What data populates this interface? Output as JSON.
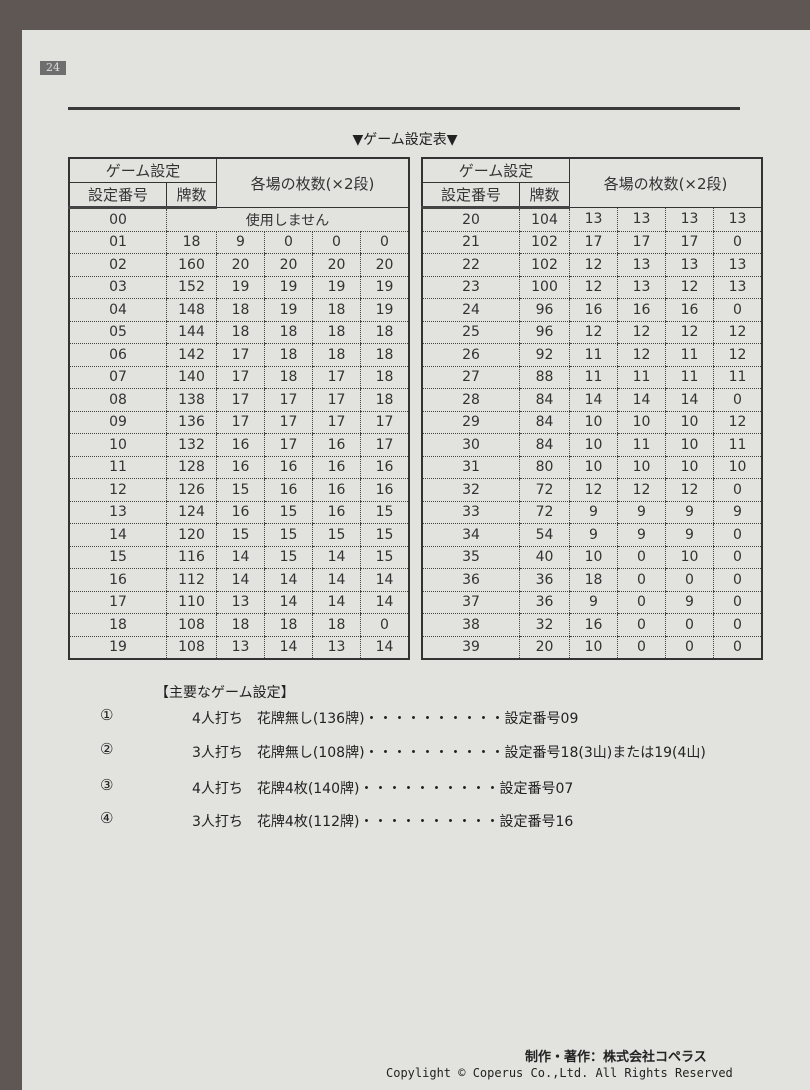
{
  "page_number": "24",
  "title": "▼ゲーム設定表▼",
  "table_headers": {
    "game_setting": "ゲーム設定",
    "setting_no": "設定番号",
    "tiles": "牌数",
    "per_field": "各場の枚数(×2段)"
  },
  "unused_label": "使用しません",
  "left_rows": [
    [
      "00"
    ],
    [
      "01",
      "18",
      "9",
      "0",
      "0",
      "0"
    ],
    [
      "02",
      "160",
      "20",
      "20",
      "20",
      "20"
    ],
    [
      "03",
      "152",
      "19",
      "19",
      "19",
      "19"
    ],
    [
      "04",
      "148",
      "18",
      "19",
      "18",
      "19"
    ],
    [
      "05",
      "144",
      "18",
      "18",
      "18",
      "18"
    ],
    [
      "06",
      "142",
      "17",
      "18",
      "18",
      "18"
    ],
    [
      "07",
      "140",
      "17",
      "18",
      "17",
      "18"
    ],
    [
      "08",
      "138",
      "17",
      "17",
      "17",
      "18"
    ],
    [
      "09",
      "136",
      "17",
      "17",
      "17",
      "17"
    ],
    [
      "10",
      "132",
      "16",
      "17",
      "16",
      "17"
    ],
    [
      "11",
      "128",
      "16",
      "16",
      "16",
      "16"
    ],
    [
      "12",
      "126",
      "15",
      "16",
      "16",
      "16"
    ],
    [
      "13",
      "124",
      "16",
      "15",
      "16",
      "15"
    ],
    [
      "14",
      "120",
      "15",
      "15",
      "15",
      "15"
    ],
    [
      "15",
      "116",
      "14",
      "15",
      "14",
      "15"
    ],
    [
      "16",
      "112",
      "14",
      "14",
      "14",
      "14"
    ],
    [
      "17",
      "110",
      "13",
      "14",
      "14",
      "14"
    ],
    [
      "18",
      "108",
      "18",
      "18",
      "18",
      "0"
    ],
    [
      "19",
      "108",
      "13",
      "14",
      "13",
      "14"
    ]
  ],
  "right_rows": [
    [
      "20",
      "104",
      "13",
      "13",
      "13",
      "13"
    ],
    [
      "21",
      "102",
      "17",
      "17",
      "17",
      "0"
    ],
    [
      "22",
      "102",
      "12",
      "13",
      "13",
      "13"
    ],
    [
      "23",
      "100",
      "12",
      "13",
      "12",
      "13"
    ],
    [
      "24",
      "96",
      "16",
      "16",
      "16",
      "0"
    ],
    [
      "25",
      "96",
      "12",
      "12",
      "12",
      "12"
    ],
    [
      "26",
      "92",
      "11",
      "12",
      "11",
      "12"
    ],
    [
      "27",
      "88",
      "11",
      "11",
      "11",
      "11"
    ],
    [
      "28",
      "84",
      "14",
      "14",
      "14",
      "0"
    ],
    [
      "29",
      "84",
      "10",
      "10",
      "10",
      "12"
    ],
    [
      "30",
      "84",
      "10",
      "11",
      "10",
      "11"
    ],
    [
      "31",
      "80",
      "10",
      "10",
      "10",
      "10"
    ],
    [
      "32",
      "72",
      "12",
      "12",
      "12",
      "0"
    ],
    [
      "33",
      "72",
      "9",
      "9",
      "9",
      "9"
    ],
    [
      "34",
      "54",
      "9",
      "9",
      "9",
      "0"
    ],
    [
      "35",
      "40",
      "10",
      "0",
      "10",
      "0"
    ],
    [
      "36",
      "36",
      "18",
      "0",
      "0",
      "0"
    ],
    [
      "37",
      "36",
      "9",
      "0",
      "9",
      "0"
    ],
    [
      "38",
      "32",
      "16",
      "0",
      "0",
      "0"
    ],
    [
      "39",
      "20",
      "10",
      "0",
      "0",
      "0"
    ]
  ],
  "main_settings": {
    "heading": "【主要なゲーム設定】",
    "items": [
      {
        "mark": "①",
        "text": "4人打ち　花牌無し(136牌)・・・・・・・・・・設定番号09"
      },
      {
        "mark": "②",
        "text": "3人打ち　花牌無し(108牌)・・・・・・・・・・設定番号18(3山)または19(4山)"
      },
      {
        "mark": "③",
        "text": "4人打ち　花牌4枚(140牌)・・・・・・・・・・設定番号07"
      },
      {
        "mark": "④",
        "text": "3人打ち　花牌4枚(112牌)・・・・・・・・・・設定番号16"
      }
    ]
  },
  "footer": {
    "credit": "制作・著作：株式会社コペラス",
    "copyright": "Copylight © Coperus Co.,Ltd. All Rights Reserved"
  }
}
